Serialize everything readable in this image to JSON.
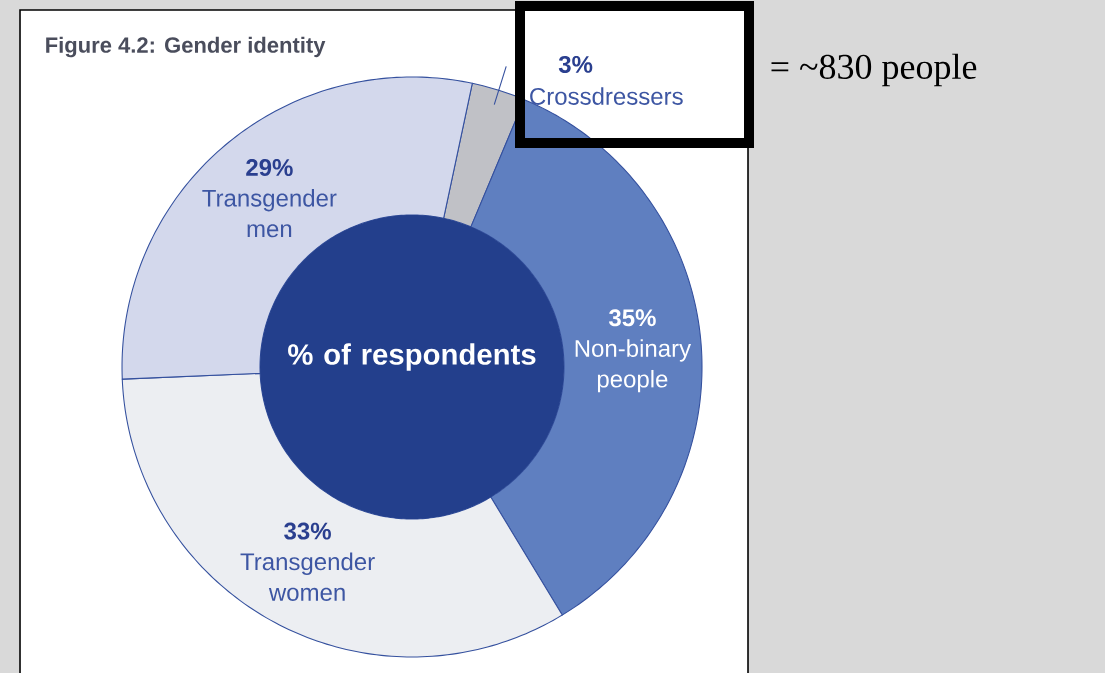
{
  "chart_data": {
    "type": "donut",
    "title": "Figure 4.2: Gender identity",
    "categories": [
      "Crossdressers",
      "Non-binary people",
      "Transgender women",
      "Transgender men"
    ],
    "values": [
      3,
      35,
      33,
      29
    ],
    "value_labels": [
      "3%",
      "35%",
      "33%",
      "29%"
    ],
    "colors": [
      "#c0c1c6",
      "#5f7fc0",
      "#eceef2",
      "#d3d8ec"
    ],
    "annotations": [
      "% of respondents",
      "= ~830 people"
    ]
  }
}
